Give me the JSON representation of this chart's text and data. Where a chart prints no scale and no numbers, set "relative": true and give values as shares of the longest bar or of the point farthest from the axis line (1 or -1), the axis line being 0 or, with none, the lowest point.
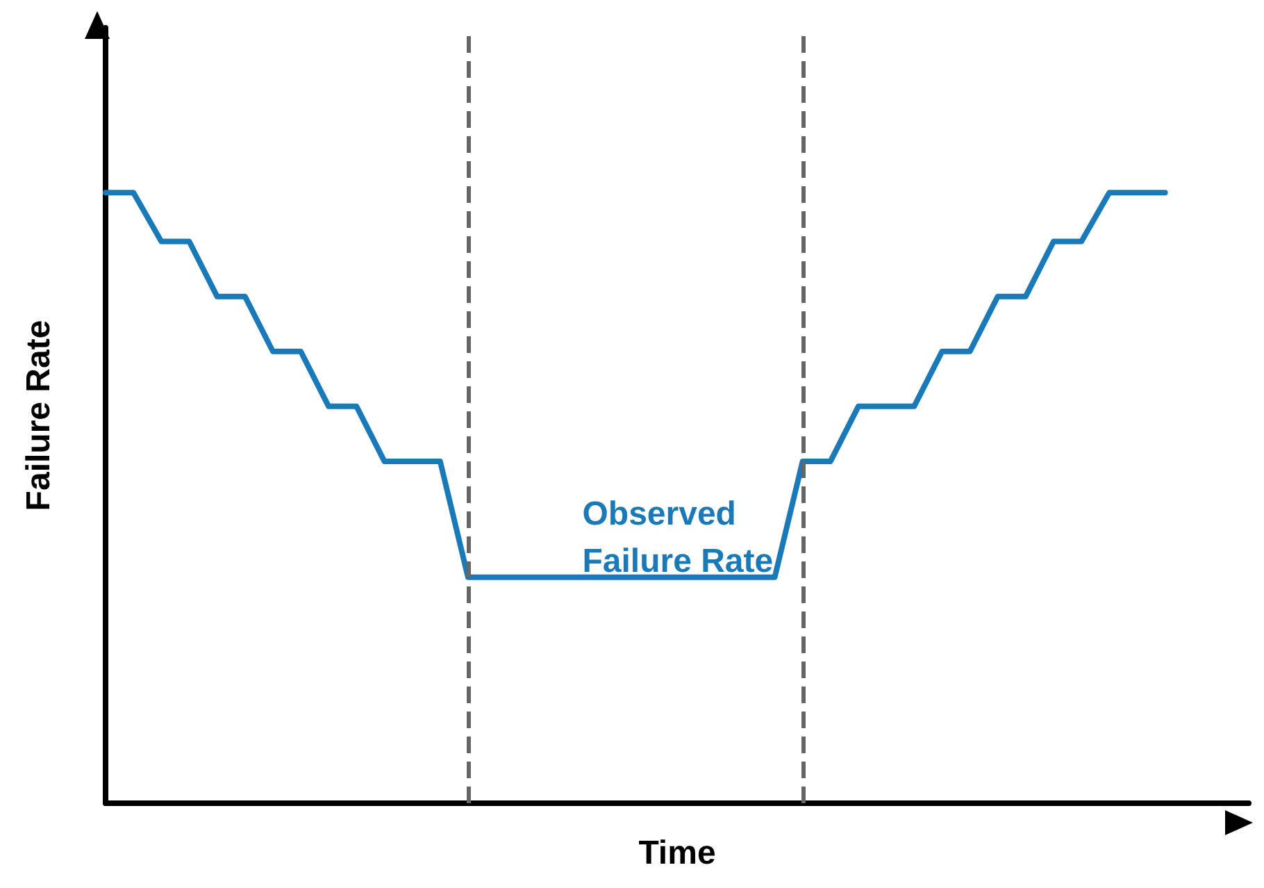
{
  "chart_data": {
    "type": "line",
    "xlabel": "Time",
    "ylabel": "Failure Rate",
    "relative": true,
    "grid": false,
    "marker": "none",
    "line_style": "solid",
    "categories": [
      null,
      null,
      null,
      null,
      null,
      null,
      null,
      null,
      null,
      null,
      null,
      null,
      null,
      null,
      null,
      null,
      null,
      null,
      null,
      null,
      null,
      null,
      null,
      null,
      null,
      null,
      null,
      null,
      null,
      null,
      null,
      null,
      null,
      null,
      null,
      null,
      null,
      null,
      null,
      null,
      null,
      null
    ],
    "series": [
      {
        "color": "#1a7ab8",
        "values": [
          1,
          1,
          0.92,
          0.92,
          0.83,
          0.83,
          0.74,
          0.74,
          0.65,
          0.65,
          0.56,
          0.56,
          0.56,
          0.37,
          0.37,
          0.37,
          0.37,
          0.37,
          0.37,
          0.37,
          0.37,
          0.37,
          0.37,
          0.37,
          0.37,
          0.56,
          0.56,
          0.65,
          0.65,
          0.65,
          0.74,
          0.74,
          0.83,
          0.83,
          0.92,
          0.92,
          1,
          1,
          1,
          null,
          null,
          null
        ]
      }
    ],
    "annotations": [
      "Observed\nFailure Rate"
    ]
  }
}
